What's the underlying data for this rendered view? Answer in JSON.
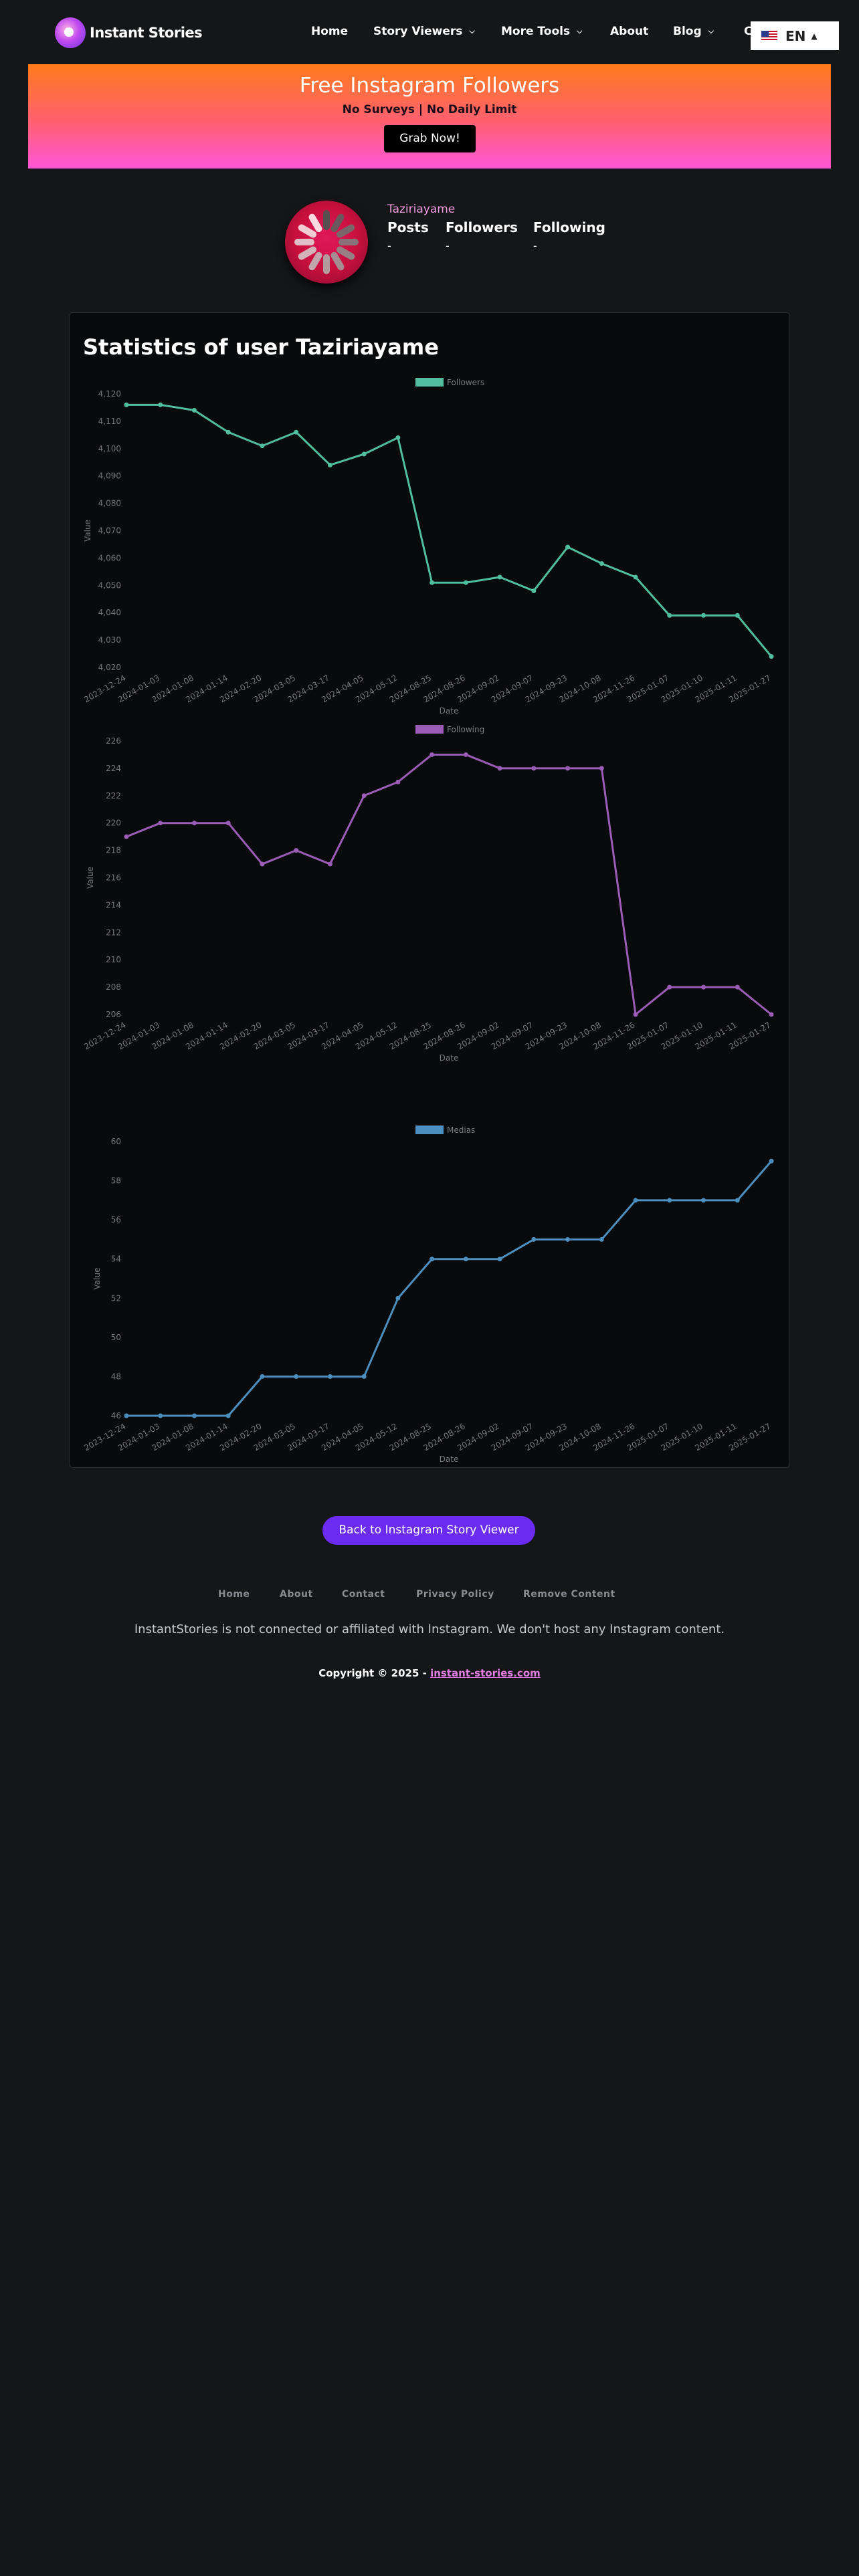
{
  "header": {
    "logo_text": "Instant Stories",
    "nav": [
      {
        "label": "Home",
        "has_dropdown": false
      },
      {
        "label": "Story Viewers",
        "has_dropdown": true
      },
      {
        "label": "More Tools",
        "has_dropdown": true
      },
      {
        "label": "About",
        "has_dropdown": false
      },
      {
        "label": "Blog",
        "has_dropdown": true
      },
      {
        "label": "C",
        "has_dropdown": false
      }
    ],
    "language": "EN"
  },
  "banner": {
    "title": "Free Instagram Followers",
    "subtitle": "No Surveys | No Daily Limit",
    "button": "Grab Now!"
  },
  "profile": {
    "username": "Taziriayame",
    "stats": [
      {
        "label": "Posts",
        "value": "-"
      },
      {
        "label": "Followers",
        "value": "-"
      },
      {
        "label": "Following",
        "value": "-"
      }
    ]
  },
  "stats_title": "Statistics of user Taziriayame",
  "chart_data": [
    {
      "type": "line",
      "name": "Followers",
      "color": "#4fbf9f",
      "xlabel": "Date",
      "ylabel": "Value",
      "ylim": [
        4020,
        4120
      ],
      "yticks": [
        4020,
        4030,
        4040,
        4050,
        4060,
        4070,
        4080,
        4090,
        4100,
        4110,
        4120
      ],
      "x": [
        "2023-12-24",
        "2024-01-03",
        "2024-01-08",
        "2024-01-14",
        "2024-02-20",
        "2024-03-05",
        "2024-03-17",
        "2024-04-05",
        "2024-05-12",
        "2024-08-25",
        "2024-08-26",
        "2024-09-02",
        "2024-09-07",
        "2024-09-23",
        "2024-10-08",
        "2024-11-26",
        "2025-01-07",
        "2025-01-10",
        "2025-01-11",
        "2025-01-27"
      ],
      "values": [
        4116,
        4116,
        4114,
        4106,
        4101,
        4106,
        4094,
        4098,
        4104,
        4051,
        4051,
        4053,
        4048,
        4064,
        4058,
        4053,
        4039,
        4039,
        4039,
        4024
      ]
    },
    {
      "type": "line",
      "name": "Following",
      "color": "#9a5cb6",
      "xlabel": "Date",
      "ylabel": "Value",
      "ylim": [
        206,
        226
      ],
      "yticks": [
        206,
        208,
        210,
        212,
        214,
        216,
        218,
        220,
        222,
        224,
        226
      ],
      "x": [
        "2023-12-24",
        "2024-01-03",
        "2024-01-08",
        "2024-01-14",
        "2024-02-20",
        "2024-03-05",
        "2024-03-17",
        "2024-04-05",
        "2024-05-12",
        "2024-08-25",
        "2024-08-26",
        "2024-09-02",
        "2024-09-07",
        "2024-09-23",
        "2024-10-08",
        "2024-11-26",
        "2025-01-07",
        "2025-01-10",
        "2025-01-11",
        "2025-01-27"
      ],
      "values": [
        219,
        220,
        220,
        220,
        217,
        218,
        217,
        222,
        223,
        225,
        225,
        224,
        224,
        224,
        224,
        206,
        208,
        208,
        208,
        206
      ]
    },
    {
      "type": "line",
      "name": "Medias",
      "color": "#4c8fbf",
      "xlabel": "Date",
      "ylabel": "Value",
      "ylim": [
        46,
        60
      ],
      "yticks": [
        46,
        48,
        50,
        52,
        54,
        56,
        58,
        60
      ],
      "x": [
        "2023-12-24",
        "2024-01-03",
        "2024-01-08",
        "2024-01-14",
        "2024-02-20",
        "2024-03-05",
        "2024-03-17",
        "2024-04-05",
        "2024-05-12",
        "2024-08-25",
        "2024-08-26",
        "2024-09-02",
        "2024-09-07",
        "2024-09-23",
        "2024-10-08",
        "2024-11-26",
        "2025-01-07",
        "2025-01-10",
        "2025-01-11",
        "2025-01-27"
      ],
      "values": [
        46,
        46,
        46,
        46,
        48,
        48,
        48,
        48,
        52,
        54,
        54,
        54,
        55,
        55,
        55,
        57,
        57,
        57,
        57,
        59
      ]
    }
  ],
  "back_button": "Back to Instagram Story Viewer",
  "footer": {
    "links": [
      "Home",
      "About",
      "Contact",
      "Privacy Policy",
      "Remove Content"
    ],
    "disclaimer": "InstantStories is not connected or affiliated with Instagram. We don't host any Instagram content.",
    "copyright_prefix": "Copyright © 2025 - ",
    "copyright_link": "instant-stories.com"
  }
}
